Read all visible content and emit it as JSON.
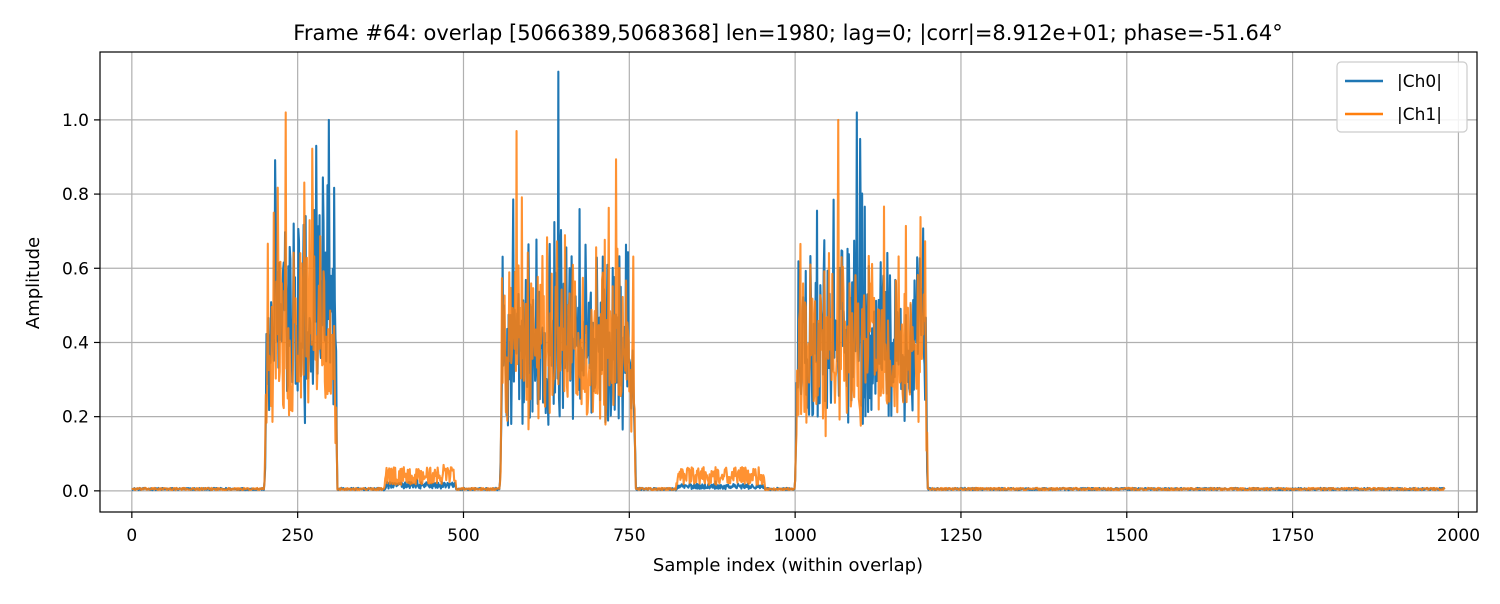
{
  "chart_data": {
    "type": "line",
    "title": "Frame #64: overlap [5066389,5068368]  len=1980; lag=0; |corr|=8.912e+01; phase=-51.64°",
    "xlabel": "Sample index (within overlap)",
    "ylabel": "Amplitude",
    "xlim": [
      -48,
      2028
    ],
    "ylim": [
      -0.057,
      1.183
    ],
    "x_ticks": [
      0,
      250,
      500,
      750,
      1000,
      1250,
      1500,
      1750,
      2000
    ],
    "y_ticks": [
      0.0,
      0.2,
      0.4,
      0.6,
      0.8,
      1.0
    ],
    "x_tick_labels": [
      "0",
      "250",
      "500",
      "750",
      "1000",
      "1250",
      "1500",
      "1750",
      "2000"
    ],
    "y_tick_labels": [
      "0.0",
      "0.2",
      "0.4",
      "0.6",
      "0.8",
      "1.0"
    ],
    "grid": true,
    "legend_position": "top-right",
    "n_samples": 1980,
    "series": [
      {
        "name": "|Ch0|",
        "color": "#1f77b4",
        "noise_floor": 0.005,
        "segments": [
          {
            "start": 200,
            "end": 310,
            "mean": 0.45,
            "peak": 1.0,
            "peak_at": 297
          },
          {
            "start": 380,
            "end": 490,
            "mean": 0.015,
            "peak": 0.03,
            "peak_at": 430
          },
          {
            "start": 555,
            "end": 760,
            "mean": 0.4,
            "peak": 1.13,
            "peak_at": 643
          },
          {
            "start": 820,
            "end": 955,
            "mean": 0.012,
            "peak": 0.025,
            "peak_at": 880
          },
          {
            "start": 1000,
            "end": 1200,
            "mean": 0.42,
            "peak": 1.02,
            "peak_at": 1093
          }
        ]
      },
      {
        "name": "|Ch1|",
        "color": "#ff7f0e",
        "noise_floor": 0.005,
        "segments": [
          {
            "start": 200,
            "end": 310,
            "mean": 0.42,
            "peak": 1.02,
            "peak_at": 232
          },
          {
            "start": 380,
            "end": 490,
            "mean": 0.04,
            "peak": 0.07,
            "peak_at": 470
          },
          {
            "start": 555,
            "end": 760,
            "mean": 0.4,
            "peak": 0.97,
            "peak_at": 580
          },
          {
            "start": 820,
            "end": 955,
            "mean": 0.04,
            "peak": 0.06,
            "peak_at": 860
          },
          {
            "start": 1000,
            "end": 1200,
            "mean": 0.4,
            "peak": 1.0,
            "peak_at": 1065
          }
        ]
      }
    ]
  }
}
